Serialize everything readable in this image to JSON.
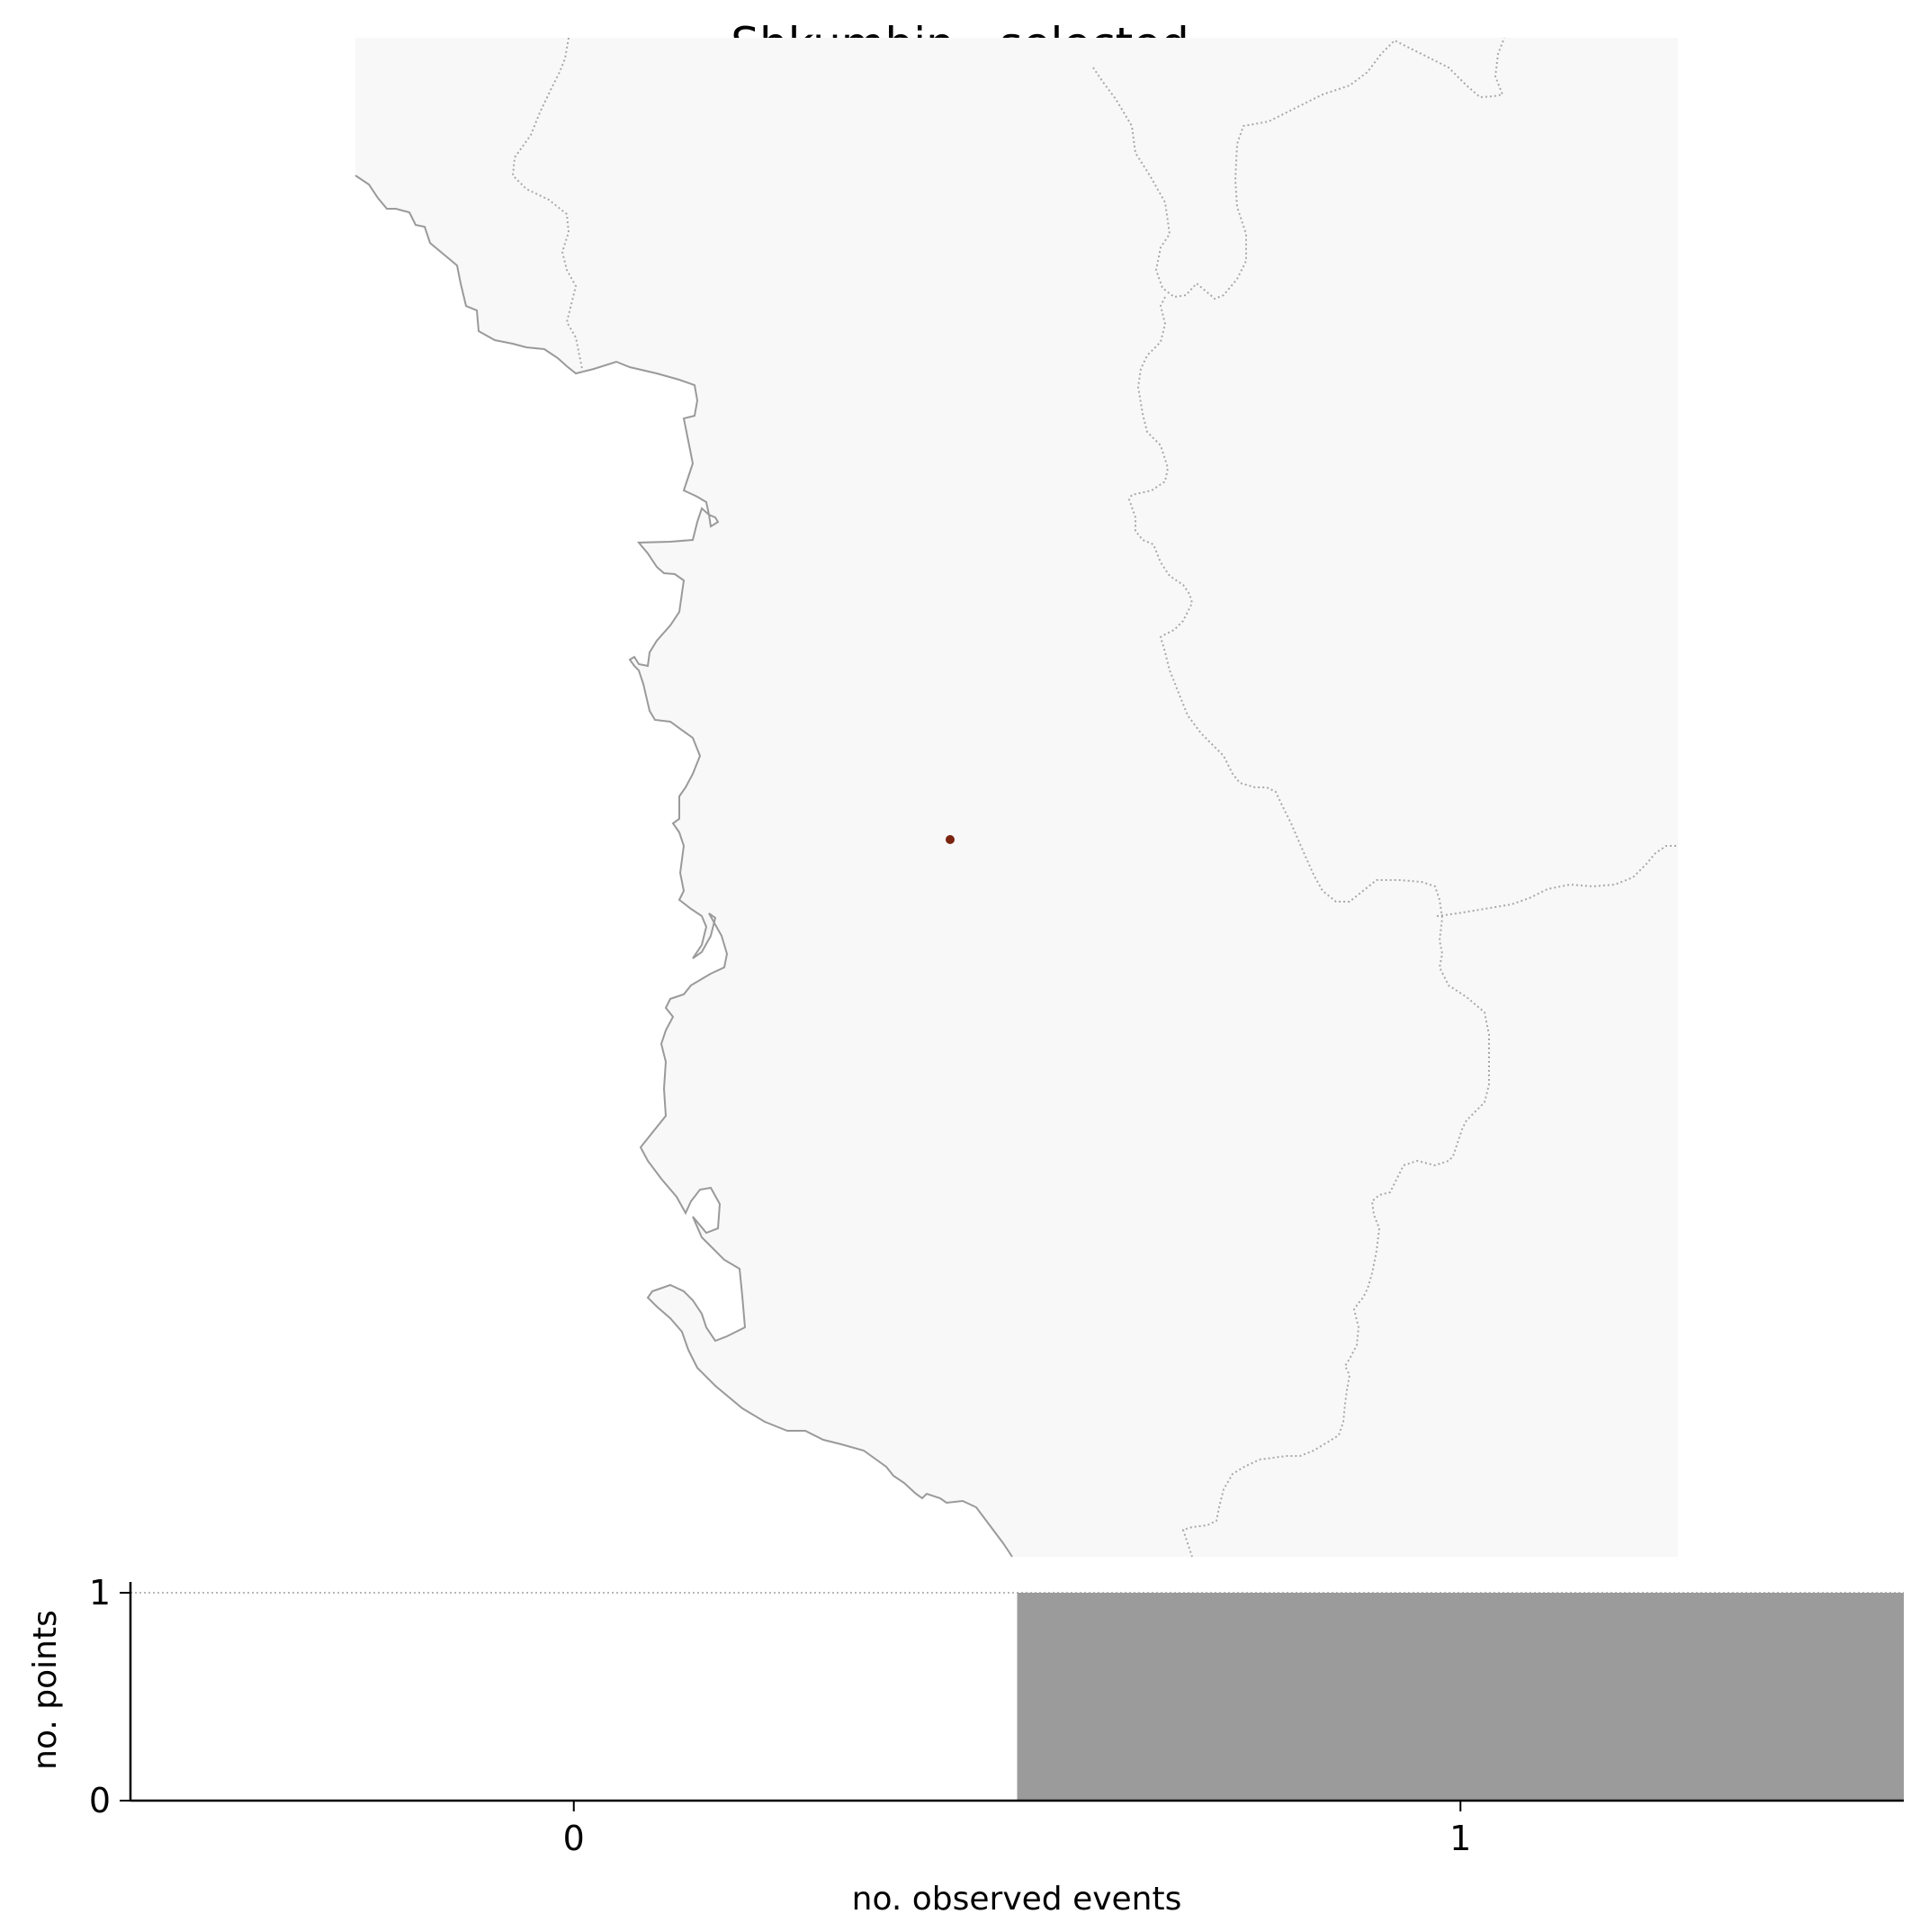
{
  "title": "Shkumbin - selected",
  "map": {
    "land_color": "#f8f8f8",
    "coastline_color": "#9a9a9a",
    "border_color": "#a8a8a8",
    "marker_color": "#7b2410",
    "marker_label": "selected point"
  },
  "chart_data": {
    "type": "bar",
    "categories": [
      "0",
      "1"
    ],
    "values": [
      0,
      1
    ],
    "xlabel": "no. observed events",
    "ylabel": "no. points",
    "ylim": [
      0,
      1
    ],
    "yticks": [
      0,
      1
    ],
    "bar_color": "#9b9b9b",
    "grid": "horizontal dotted line at y = 1"
  }
}
